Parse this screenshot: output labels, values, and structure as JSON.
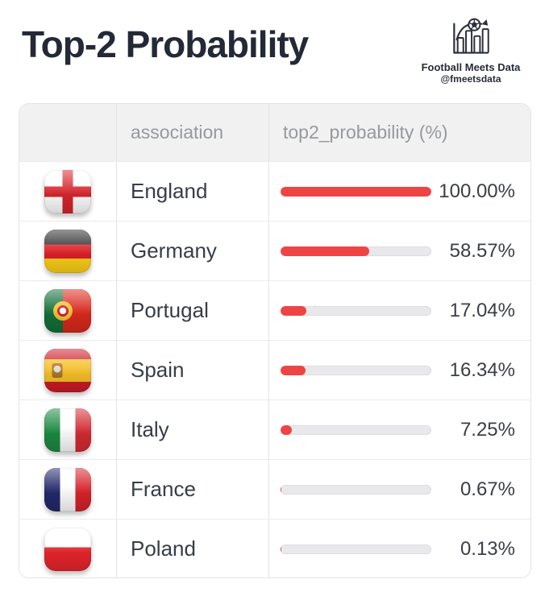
{
  "page": {
    "title": "Top-2 Probability",
    "brand": {
      "name": "Football Meets Data",
      "handle": "@fmeetsdata",
      "icon": "bar-chart-with-football-logo"
    }
  },
  "colors": {
    "bar_fill": "#ef4444",
    "bar_track": "#e9e9ec",
    "header_bg": "#f1f1f2",
    "title_text": "#232936"
  },
  "table": {
    "columns": [
      {
        "key": "flag",
        "label": ""
      },
      {
        "key": "association",
        "label": "association"
      },
      {
        "key": "top2_probability",
        "label": "top2_probability (%)"
      }
    ],
    "rows": [
      {
        "association": "England",
        "flag_icon": "england-flag-icon",
        "value": 100.0,
        "display": "100.00%"
      },
      {
        "association": "Germany",
        "flag_icon": "germany-flag-icon",
        "value": 58.57,
        "display": "58.57%"
      },
      {
        "association": "Portugal",
        "flag_icon": "portugal-flag-icon",
        "value": 17.04,
        "display": "17.04%"
      },
      {
        "association": "Spain",
        "flag_icon": "spain-flag-icon",
        "value": 16.34,
        "display": "16.34%"
      },
      {
        "association": "Italy",
        "flag_icon": "italy-flag-icon",
        "value": 7.25,
        "display": "7.25%"
      },
      {
        "association": "France",
        "flag_icon": "france-flag-icon",
        "value": 0.67,
        "display": "0.67%"
      },
      {
        "association": "Poland",
        "flag_icon": "poland-flag-icon",
        "value": 0.13,
        "display": "0.13%"
      }
    ]
  },
  "chart_data": {
    "type": "bar",
    "title": "Top-2 Probability",
    "columns": [
      "association",
      "top2_probability (%)"
    ],
    "categories": [
      "England",
      "Germany",
      "Portugal",
      "Spain",
      "Italy",
      "France",
      "Poland"
    ],
    "values": [
      100.0,
      58.57,
      17.04,
      16.34,
      7.25,
      0.67,
      0.13
    ],
    "value_labels": [
      "100.00%",
      "58.57%",
      "17.04%",
      "16.34%",
      "7.25%",
      "0.67%",
      "0.13%"
    ],
    "xlabel": "",
    "ylabel": "top2_probability (%)",
    "value_range": [
      0,
      100
    ],
    "bar_color": "#ef4444",
    "orientation": "horizontal",
    "legend": false,
    "grid": false
  }
}
